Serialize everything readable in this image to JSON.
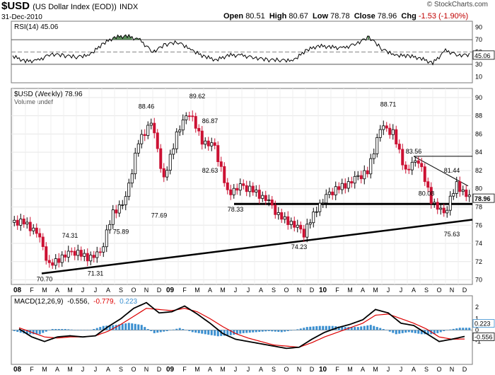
{
  "header": {
    "symbol": "$USD",
    "name": "(US Dollar Index (EOD))",
    "exchange": "INDX",
    "date": "31-Dec-2010",
    "open_label": "Open",
    "open": "80.51",
    "high_label": "High",
    "high": "80.67",
    "low_label": "Low",
    "low": "78.78",
    "close_label": "Close",
    "close": "78.96",
    "chg_label": "Chg",
    "chg": "-1.53 (-1.90%)",
    "watermark": "© StockCharts.com"
  },
  "colors": {
    "up": "#000000",
    "down": "#cc1133",
    "macd_line": "#000000",
    "signal_line": "#dd0000",
    "histogram": "#3a8fd0",
    "rsi_fill": "#3f7a3f"
  },
  "chart_data": [
    {
      "type": "line",
      "title": "RSI(14) 45.06",
      "current": "45.06",
      "ylim": [
        0,
        100
      ],
      "yticks": [
        "10",
        "30",
        "50",
        "70",
        "90"
      ],
      "guide_levels": [
        30,
        50,
        70
      ],
      "x": [
        "2008-01",
        "2008-02",
        "2008-03",
        "2008-04",
        "2008-05",
        "2008-06",
        "2008-07",
        "2008-08",
        "2008-09",
        "2008-10",
        "2008-11",
        "2008-12",
        "2009-01",
        "2009-02",
        "2009-03",
        "2009-04",
        "2009-05",
        "2009-06",
        "2009-07",
        "2009-08",
        "2009-09",
        "2009-10",
        "2009-11",
        "2009-12",
        "2010-01",
        "2010-02",
        "2010-03",
        "2010-04",
        "2010-05",
        "2010-06",
        "2010-07",
        "2010-08",
        "2010-09",
        "2010-10",
        "2010-11",
        "2010-12"
      ],
      "values": [
        43,
        35,
        36,
        47,
        44,
        42,
        44,
        62,
        74,
        76,
        69,
        50,
        62,
        66,
        53,
        43,
        37,
        45,
        44,
        41,
        37,
        37,
        35,
        52,
        60,
        58,
        56,
        64,
        74,
        55,
        44,
        44,
        40,
        32,
        52,
        45
      ]
    },
    {
      "type": "bar",
      "subtype": "ohlc",
      "title": "$USD (Weekly) 78.96",
      "volume_label": "Volume undef",
      "current": "78.96",
      "ylim": [
        69.5,
        91
      ],
      "yticks": [
        "70",
        "72",
        "74",
        "76",
        "78",
        "80",
        "82",
        "84",
        "86",
        "88",
        "90"
      ],
      "xticks": [
        "08",
        "F",
        "M",
        "A",
        "M",
        "J",
        "J",
        "A",
        "S",
        "O",
        "N",
        "D",
        "09",
        "F",
        "M",
        "A",
        "M",
        "J",
        "J",
        "A",
        "S",
        "O",
        "N",
        "D",
        "10",
        "F",
        "M",
        "A",
        "M",
        "J",
        "J",
        "A",
        "S",
        "O",
        "N",
        "D"
      ],
      "monthly_closes": [
        76.3,
        75.3,
        71.5,
        72.6,
        73.0,
        72.5,
        72.8,
        77.4,
        78.8,
        85.1,
        87.4,
        80.9,
        86.1,
        88.3,
        85.3,
        84.5,
        79.6,
        80.2,
        79.8,
        78.9,
        77.0,
        76.3,
        75.0,
        77.9,
        79.4,
        80.3,
        81.0,
        81.8,
        86.7,
        86.1,
        82.0,
        83.1,
        78.8,
        77.1,
        80.5,
        78.96
      ],
      "annotations": [
        {
          "label": "70.70",
          "date": "2008-03",
          "value": 70.7
        },
        {
          "label": "74.31",
          "date": "2008-05",
          "value": 74.31
        },
        {
          "label": "71.31",
          "date": "2008-07",
          "value": 71.31
        },
        {
          "label": "75.89",
          "date": "2008-09",
          "value": 75.89
        },
        {
          "label": "88.46",
          "date": "2008-11",
          "value": 88.46
        },
        {
          "label": "77.69",
          "date": "2008-12",
          "value": 77.69
        },
        {
          "label": "89.62",
          "date": "2009-03",
          "value": 89.62
        },
        {
          "label": "86.87",
          "date": "2009-04",
          "value": 86.87
        },
        {
          "label": "82.63",
          "date": "2009-04",
          "value": 82.63
        },
        {
          "label": "78.33",
          "date": "2009-06",
          "value": 78.33
        },
        {
          "label": "74.23",
          "date": "2009-11",
          "value": 74.23
        },
        {
          "label": "88.71",
          "date": "2010-06",
          "value": 88.71
        },
        {
          "label": "83.56",
          "date": "2010-08",
          "value": 83.56
        },
        {
          "label": "80.08",
          "date": "2010-09",
          "value": 80.08
        },
        {
          "label": "81.44",
          "date": "2010-11",
          "value": 81.44
        },
        {
          "label": "75.63",
          "date": "2010-11",
          "value": 75.63
        }
      ]
    },
    {
      "type": "line",
      "title": "MACD(12,26,9) -0.556, -0.779, 0.223",
      "label_parts": {
        "name": "MACD(12,26,9)",
        "macd": "-0.556,",
        "signal": "-0.779,",
        "hist": "0.223"
      },
      "ylim": [
        -3,
        3
      ],
      "yticks": [
        "-1",
        "0",
        "1",
        "2"
      ],
      "current_values": [
        "0.223",
        "-0.556"
      ],
      "series": [
        {
          "values": [
            0.1,
            -0.6,
            -1.0,
            -0.6,
            -0.5,
            -0.6,
            -0.5,
            0.3,
            1.0,
            1.9,
            2.4,
            1.5,
            1.6,
            2.1,
            1.4,
            0.6,
            -0.3,
            -0.8,
            -1.0,
            -1.2,
            -1.4,
            -1.6,
            -1.5,
            -0.8,
            -0.2,
            0.2,
            0.5,
            0.9,
            1.8,
            1.5,
            0.6,
            0.4,
            -0.3,
            -1.0,
            -0.8,
            -0.556
          ]
        },
        {
          "values": [
            0.2,
            -0.2,
            -0.6,
            -0.7,
            -0.6,
            -0.6,
            -0.5,
            -0.1,
            0.5,
            1.2,
            1.9,
            1.8,
            1.7,
            1.9,
            1.6,
            1.0,
            0.3,
            -0.3,
            -0.7,
            -1.0,
            -1.3,
            -1.4,
            -1.5,
            -1.1,
            -0.6,
            -0.2,
            0.2,
            0.6,
            1.3,
            1.4,
            1.0,
            0.6,
            0.1,
            -0.6,
            -0.8,
            -0.779
          ]
        }
      ]
    }
  ]
}
